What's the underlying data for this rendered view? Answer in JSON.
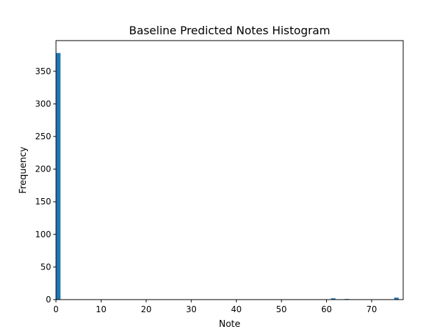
{
  "chart_data": {
    "type": "bar",
    "title": "Baseline Predicted Notes Histogram",
    "xlabel": "Note",
    "ylabel": "Frequency",
    "xlim": [
      0,
      77
    ],
    "ylim": [
      0,
      397
    ],
    "xticks": [
      0,
      10,
      20,
      30,
      40,
      50,
      60,
      70
    ],
    "yticks": [
      0,
      50,
      100,
      150,
      200,
      250,
      300,
      350
    ],
    "bar_color": "#1f77b4",
    "grid": false,
    "bins": [
      {
        "x0": 0,
        "x1": 1,
        "value": 378
      },
      {
        "x0": 61,
        "x1": 62,
        "value": 2
      },
      {
        "x0": 64,
        "x1": 65,
        "value": 1
      },
      {
        "x0": 75,
        "x1": 76,
        "value": 3
      }
    ]
  }
}
